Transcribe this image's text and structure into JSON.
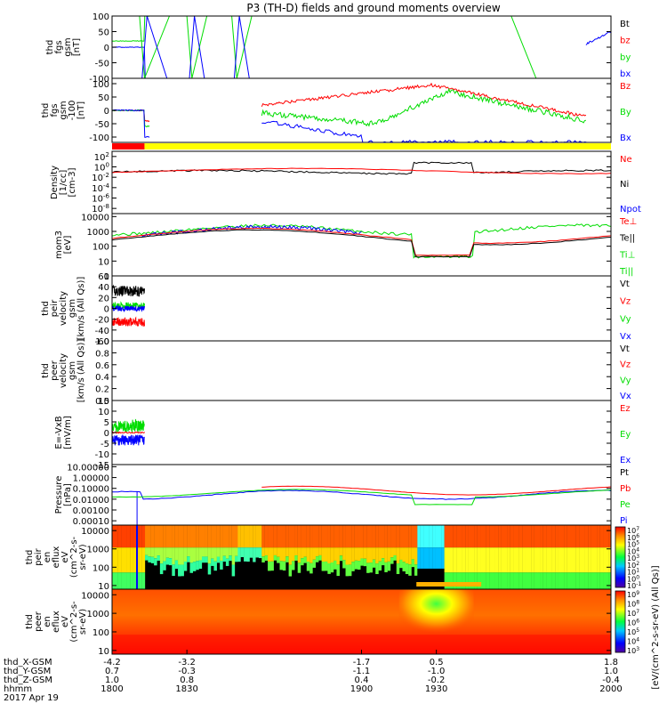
{
  "title": "P3 (TH-D) fields and ground moments overview",
  "colors": {
    "black": "#000000",
    "red": "#ff0000",
    "green": "#00dd00",
    "blue": "#0000ff",
    "yellow": "#ffff00"
  },
  "chart_data": [
    {
      "type": "line",
      "panel": "fgs_gsm",
      "ylabel": [
        "thd",
        "fgs",
        "gsm",
        "[nT]"
      ],
      "yticks": [
        "100",
        "50",
        "0",
        "-50",
        "-100"
      ],
      "ylim": [
        -100,
        100
      ],
      "log": false,
      "legend": [
        {
          "name": "Bt",
          "color": "black"
        },
        {
          "name": "bz",
          "color": "red"
        },
        {
          "name": "by",
          "color": "green"
        },
        {
          "name": "bx",
          "color": "blue"
        }
      ]
    },
    {
      "type": "line",
      "panel": "fgs_gsm_100",
      "ylabel": [
        "thd",
        "fgs",
        "gsm",
        "-100",
        "[nT]"
      ],
      "yticks": [
        "100",
        "50",
        "0",
        "-50",
        "-100"
      ],
      "ylim": [
        -120,
        120
      ],
      "log": false,
      "legend": [
        {
          "name": "Bz",
          "color": "red"
        },
        {
          "name": "By",
          "color": "green"
        },
        {
          "name": "Bx",
          "color": "blue"
        }
      ]
    },
    {
      "type": "bar",
      "panel": "mode_bar",
      "segments": [
        {
          "from": 1800,
          "to": 1813,
          "color": "red"
        },
        {
          "from": 1813,
          "to": 2000,
          "color": "yellow"
        }
      ]
    },
    {
      "type": "line",
      "panel": "density",
      "ylabel": [
        "Density",
        "[1/cc]",
        "[cm-3]"
      ],
      "yticks": [
        "10^2",
        "10^0",
        "10^-2",
        "10^-4",
        "10^-6",
        "10^-8"
      ],
      "ylim": [
        -9,
        3
      ],
      "log": true,
      "legend": [
        {
          "name": "Ne",
          "color": "red"
        },
        {
          "name": "Ni",
          "color": "black"
        },
        {
          "name": "Npot",
          "color": "blue"
        }
      ]
    },
    {
      "type": "line",
      "panel": "temperature",
      "ylabel": [
        "mom3",
        "[eV]"
      ],
      "yticks": [
        "10000",
        "1000",
        "100",
        "10",
        "1"
      ],
      "ylim": [
        0,
        4.2
      ],
      "log": true,
      "legend": [
        {
          "name": "Te⊥",
          "color": "red"
        },
        {
          "name": "Te||",
          "color": "black"
        },
        {
          "name": "Ti⊥",
          "color": "green"
        },
        {
          "name": "Ti||",
          "color": "green"
        }
      ]
    },
    {
      "type": "line",
      "panel": "peir_velocity",
      "ylabel": [
        "thd",
        "peir",
        "velocity",
        "gsm",
        "[km/s (All Qs)]"
      ],
      "yticks": [
        "60",
        "40",
        "20",
        "0",
        "-20",
        "-40",
        "-60"
      ],
      "ylim": [
        -60,
        60
      ],
      "log": false,
      "legend": [
        {
          "name": "Vt",
          "color": "black"
        },
        {
          "name": "Vz",
          "color": "red"
        },
        {
          "name": "Vy",
          "color": "green"
        },
        {
          "name": "Vx",
          "color": "blue"
        }
      ]
    },
    {
      "type": "line",
      "panel": "peer_velocity",
      "ylabel": [
        "thd",
        "peer",
        "velocity",
        "gsm",
        "[km/s (All Qs)]"
      ],
      "yticks": [
        "1.0",
        "0.8",
        "0.6",
        "0.4",
        "0.2",
        "0.0"
      ],
      "ylim": [
        0,
        1
      ],
      "log": false,
      "legend": [
        {
          "name": "Vt",
          "color": "black"
        },
        {
          "name": "Vz",
          "color": "red"
        },
        {
          "name": "Vy",
          "color": "green"
        },
        {
          "name": "Vx",
          "color": "blue"
        }
      ]
    },
    {
      "type": "line",
      "panel": "efield",
      "ylabel": [
        "E=-VxB",
        "[mV/m]"
      ],
      "yticks": [
        "15",
        "10",
        "5",
        "0",
        "-5",
        "-10",
        "-15"
      ],
      "ylim": [
        -15,
        15
      ],
      "log": false,
      "legend": [
        {
          "name": "Ez",
          "color": "red"
        },
        {
          "name": "Ey",
          "color": "green"
        },
        {
          "name": "Ex",
          "color": "blue"
        }
      ]
    },
    {
      "type": "line",
      "panel": "pressure",
      "ylabel": [
        "Pressure",
        "[nPa]"
      ],
      "yticks": [
        "10.00000",
        "1.00000",
        "0.10000",
        "0.01000",
        "0.00100",
        "0.00010"
      ],
      "ylim": [
        -4.4,
        1.2
      ],
      "log": true,
      "legend": [
        {
          "name": "Pt",
          "color": "black"
        },
        {
          "name": "Pb",
          "color": "red"
        },
        {
          "name": "Pe",
          "color": "green"
        },
        {
          "name": "Pi",
          "color": "blue"
        }
      ]
    },
    {
      "type": "heatmap",
      "panel": "peir_spectrogram",
      "ylabel": [
        "thd",
        "peir",
        "en",
        "eflux",
        "eV",
        "(cm^2-s-",
        "sr-eV)"
      ],
      "yticks": [
        "10000",
        "1000",
        "100",
        "10"
      ],
      "ylim": [
        0.8,
        4.3
      ],
      "log": true,
      "colorbar": {
        "label": "[eV/(cm^2-s-sr-eV)]",
        "ticks": [
          "10^7",
          "10^6",
          "10^5",
          "10^4",
          "10^3",
          "10^2",
          "10^1",
          "10^0",
          "10^-1"
        ]
      }
    },
    {
      "type": "heatmap",
      "panel": "peer_spectrogram",
      "ylabel": [
        "thd",
        "peer",
        "en",
        "eflux",
        "eV",
        "(cm^2-s-",
        "sr-eV)"
      ],
      "yticks": [
        "10000",
        "1000",
        "100",
        "10"
      ],
      "ylim": [
        0.8,
        4.3
      ],
      "log": true,
      "colorbar": {
        "label": "[eV/(cm^2-s-sr-eV)]",
        "ticks": [
          "10^9",
          "10^8",
          "10^7",
          "10^6",
          "10^5",
          "10^4",
          "10^3"
        ]
      }
    }
  ],
  "xaxis": {
    "label_rows": [
      "thd_X-GSM",
      "thd_Y-GSM",
      "thd_Z-GSM",
      "hhmm",
      "2017 Apr 19"
    ],
    "ticks_time": [
      1800,
      1830,
      1900,
      1930,
      2000
    ],
    "tick_labels": [
      [
        "-4.2",
        "0.7",
        "1.0",
        "1800"
      ],
      [
        "-3.2",
        "-0.3",
        "0.8",
        "1830"
      ],
      [
        "-1.7",
        "-1.1",
        "0.4",
        "1900"
      ],
      [
        "0.5",
        "-1.0",
        "-0.2",
        "1930"
      ],
      [
        "1.8",
        "1.0",
        "-0.4",
        "2000"
      ]
    ],
    "colorbar_label": "[eV/(cm^2-s-sr-eV) (All Qs)]"
  }
}
